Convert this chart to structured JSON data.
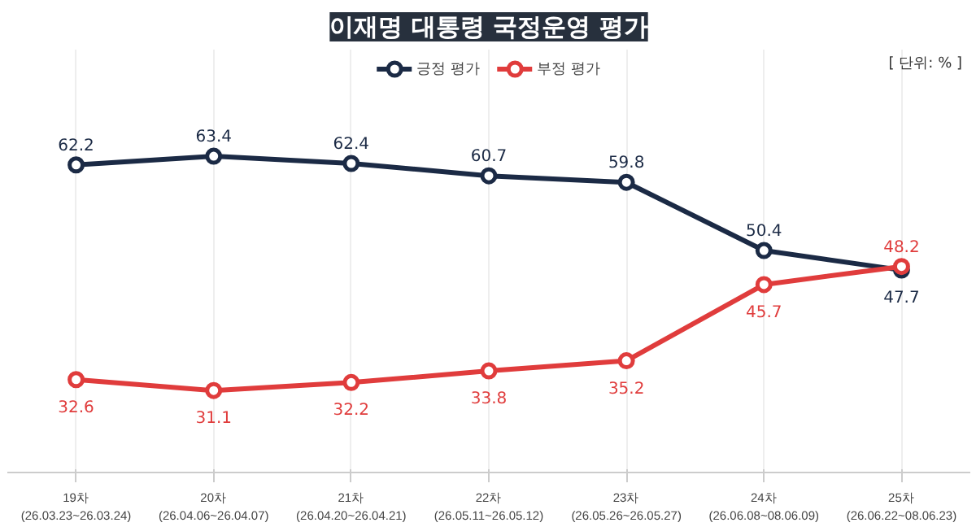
{
  "chart_data": {
    "type": "line",
    "title": "이재명 대통령 국정운영 평가",
    "annotations": [
      "[ 단위: % ]"
    ],
    "categories": [
      "19차\n(26.03.23~26.03.24)",
      "20차\n(26.04.06~26.04.07)",
      "21차\n(26.04.20~26.04.21)",
      "22차\n(26.05.11~26.05.12)",
      "23차\n(26.05.26~26.05.27)",
      "24차\n(26.06.08~08.06.09)",
      "25차\n(26.06.22~08.06.23)"
    ],
    "series": [
      {
        "name": "긍정 평가",
        "color": "#1b2a45",
        "values": [
          62.2,
          63.4,
          62.4,
          60.7,
          59.8,
          50.4,
          47.7
        ]
      },
      {
        "name": "부정 평가",
        "color": "#e03c3c",
        "values": [
          32.6,
          31.1,
          32.2,
          33.8,
          35.2,
          45.7,
          48.2
        ]
      }
    ],
    "data_labels": true,
    "marker": "circle",
    "line_style": "solid",
    "legend": "top",
    "grid": "x"
  }
}
